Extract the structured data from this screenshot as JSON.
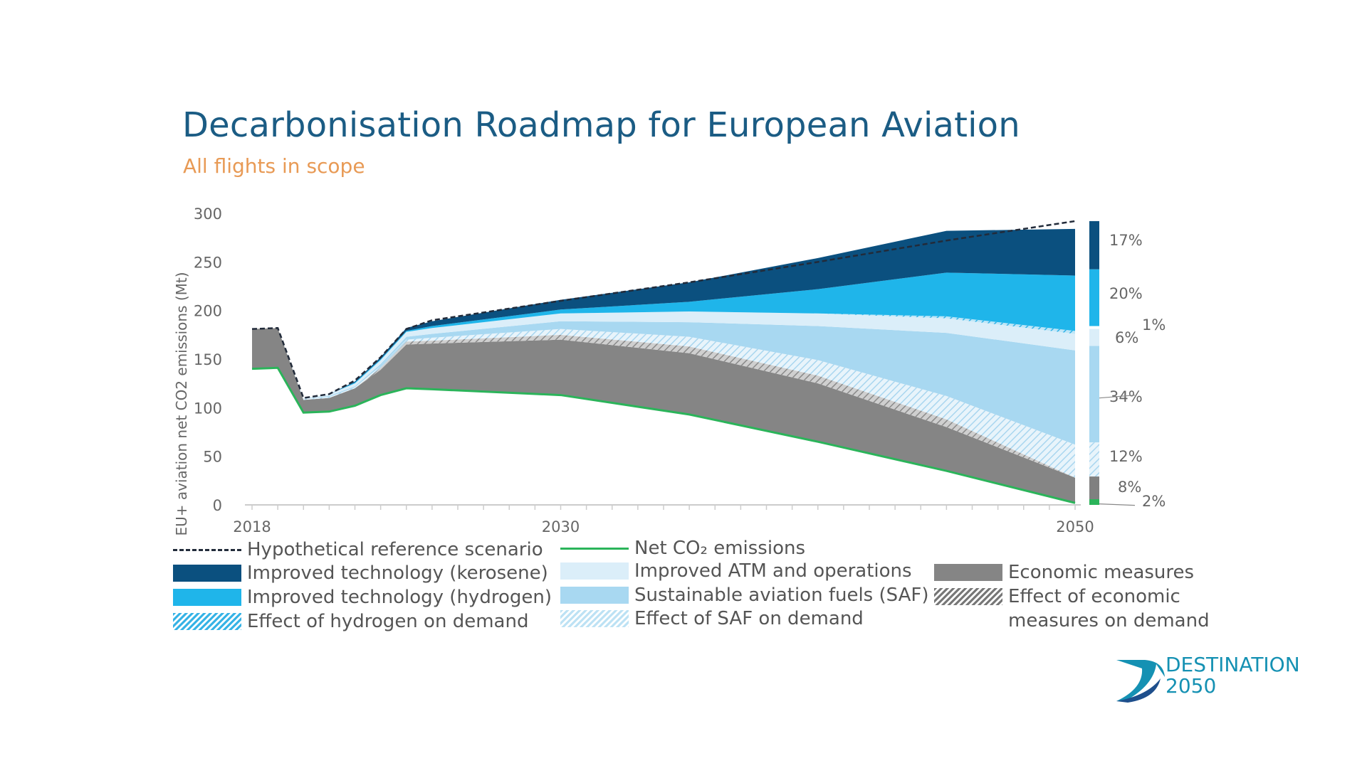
{
  "chart_data": {
    "type": "area",
    "title": "Decarbonisation Roadmap for European Aviation",
    "subtitle": "All flights in scope",
    "ylabel": "EU+ aviation net CO2 emissions (Mt)",
    "ylim": [
      0,
      300
    ],
    "yticks": [
      "0",
      "50",
      "100",
      "150",
      "200",
      "250",
      "300"
    ],
    "xlim": [
      2018,
      2050
    ],
    "xticks": [
      "2018",
      "2030",
      "2050"
    ],
    "x": [
      2018,
      2019,
      2020,
      2021,
      2022,
      2023,
      2024,
      2025,
      2030,
      2035,
      2040,
      2045,
      2050
    ],
    "series": [
      {
        "name": "Net CO2 emissions",
        "values": [
          140,
          141,
          95,
          96,
          102,
          113,
          120,
          119,
          113,
          93,
          65,
          35,
          2
        ]
      },
      {
        "name": "Economic measures",
        "values": [
          41,
          41,
          13,
          14,
          18,
          26,
          45,
          47,
          57,
          63,
          60,
          45,
          26
        ]
      },
      {
        "name": "Effect of economic measures on demand",
        "values": [
          0,
          0,
          0,
          0,
          0,
          2,
          3,
          3,
          5,
          7,
          8,
          8,
          0
        ]
      },
      {
        "name": "Effect of SAF on demand",
        "values": [
          0,
          0,
          1,
          1,
          1,
          2,
          2,
          3,
          6,
          10,
          16,
          24,
          34
        ]
      },
      {
        "name": "Sustainable aviation fuels (SAF)",
        "values": [
          0,
          0,
          0,
          1,
          1,
          2,
          3,
          4,
          8,
          15,
          35,
          65,
          97
        ]
      },
      {
        "name": "Improved ATM and operations",
        "values": [
          0,
          0,
          1,
          2,
          3,
          4,
          5,
          6,
          8,
          11,
          13,
          15,
          17
        ]
      },
      {
        "name": "Effect of hydrogen on demand",
        "values": [
          0,
          0,
          0,
          0,
          0,
          0,
          0,
          0,
          0,
          0,
          0,
          2,
          3
        ]
      },
      {
        "name": "Improved technology (hydrogen)",
        "values": [
          0,
          0,
          0,
          0,
          1,
          1,
          1,
          2,
          4,
          10,
          25,
          45,
          57
        ]
      },
      {
        "name": "Improved technology (kerosene)",
        "values": [
          0,
          0,
          0,
          0,
          1,
          2,
          3,
          5,
          10,
          20,
          32,
          43,
          48
        ]
      },
      {
        "name": "Hypothetical reference scenario",
        "values": [
          181,
          182,
          110,
          114,
          128,
          152,
          181,
          190,
          210,
          229,
          250,
          272,
          292
        ]
      }
    ],
    "bar_2050": [
      {
        "label": "17%",
        "color": "#0b507f"
      },
      {
        "label": "20%",
        "color": "#1fb5ea"
      },
      {
        "label": "1%",
        "color": "#ffffff"
      },
      {
        "label": "6%",
        "color": "#dbeef9"
      },
      {
        "label": "34%",
        "color": "#a8d8f1"
      },
      {
        "label": "12%",
        "color": "#cfe8f6"
      },
      {
        "label": "8%",
        "color": "#808080"
      },
      {
        "label": "2%",
        "color": "#2bb45a"
      }
    ],
    "colors": {
      "kerosene": "#0b507f",
      "hydrogen": "#1fb5ea",
      "atm": "#dbeef9",
      "saf": "#a8d8f1",
      "economic": "#858585",
      "net": "#2bb45a",
      "reference": "#222b3a"
    }
  },
  "legend": {
    "col1": [
      "Hypothetical reference scenario",
      "Improved technology (kerosene)",
      "Improved technology (hydrogen)",
      "Effect of hydrogen on demand"
    ],
    "col2": [
      "Net CO₂ emissions",
      "Improved ATM and operations",
      "Sustainable aviation fuels (SAF)",
      "Effect of SAF on demand"
    ],
    "col3": [
      "Economic measures",
      "Effect of economic",
      "measures on demand"
    ]
  },
  "logo": {
    "line1": "DESTINATION",
    "line2": "2050"
  }
}
